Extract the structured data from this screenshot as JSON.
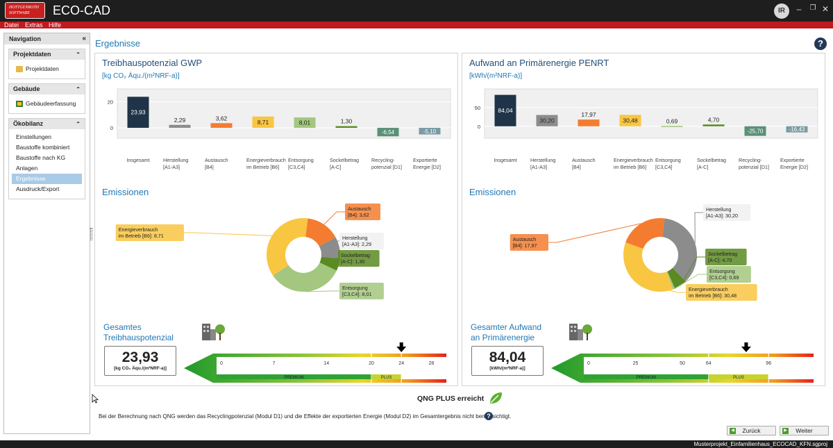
{
  "app": {
    "logo_line1": "HOTTGENROTH",
    "logo_line2": "SOFTWARE",
    "title": "ECO-CAD",
    "user_initials": "IR"
  },
  "menu": [
    "Datei",
    "Extras",
    "Hilfe"
  ],
  "nav": {
    "title": "Navigation",
    "sections": [
      {
        "title": "Projektdaten",
        "items": [
          {
            "label": "Projektdaten",
            "icon": "folder-icon"
          }
        ]
      },
      {
        "title": "Gebäude",
        "items": [
          {
            "label": "Gebäudeerfassung",
            "icon": "building-capture-icon"
          }
        ]
      },
      {
        "title": "Ökobilanz",
        "items": [
          {
            "label": "Einstellungen"
          },
          {
            "label": "Baustoffe kombiniert"
          },
          {
            "label": "Baustoffe nach KG"
          },
          {
            "label": "Anlagen"
          },
          {
            "label": "Ergebnisse",
            "active": true
          },
          {
            "label": "Ausdruck/Export"
          }
        ]
      }
    ]
  },
  "page": {
    "title": "Ergebnisse"
  },
  "panels": {
    "gwp": {
      "title": "Treibhauspotenzial GWP",
      "unit": "[kg CO₂ Äqu./(m²NRF-a)]",
      "emissions_title": "Emissionen",
      "total_label_1": "Gesamtes",
      "total_label_2": "Treibhauspotenzial",
      "total_value": "23,93",
      "total_unit": "[kg CO₂ Äqu./(m²NRF-a)]"
    },
    "penrt": {
      "title": "Aufwand an Primärenergie PENRT",
      "unit": "[kWh/(m²NRF-a)]",
      "emissions_title": "Emissionen",
      "total_label_1": "Gesamter Aufwand",
      "total_label_2": "an Primärenergie",
      "total_value": "84,04",
      "total_unit": "[kWh/(m²NRF-a)]"
    }
  },
  "chart_data": [
    {
      "type": "bar",
      "title": "Treibhauspotenzial GWP",
      "ylabel": "[kg CO₂ Äqu./(m²NRF-a)]",
      "ylim": [
        -8,
        30
      ],
      "yticks": [
        20,
        0
      ],
      "categories": [
        [
          "Insgesamt"
        ],
        [
          "Herstellung",
          "[A1-A3]"
        ],
        [
          "Austausch",
          "[B4]"
        ],
        [
          "Energieverbrauch",
          "im Betrieb [B6]"
        ],
        [
          "Entsorgung",
          "[C3,C4]"
        ],
        [
          "Sockelbetrag",
          "[A-C]"
        ],
        [
          "Recycling-",
          "potenzial [D1]"
        ],
        [
          "Exportierte",
          "Energie [D2]"
        ]
      ],
      "values": [
        23.93,
        2.29,
        3.62,
        8.71,
        8.01,
        1.3,
        -6.54,
        -5.1
      ],
      "labels": [
        "23,93",
        "2,29",
        "3,62",
        "8,71",
        "8,01",
        "1,30",
        "-6,54",
        "-5,10"
      ],
      "colors": [
        "#1f3448",
        "#8c8c8c",
        "#f47c30",
        "#f9c642",
        "#a3c77e",
        "#5b8a22",
        "#5a9078",
        "#7a9aa3"
      ]
    },
    {
      "type": "bar",
      "title": "Aufwand an Primärenergie PENRT",
      "ylabel": "[kWh/(m²NRF-a)]",
      "ylim": [
        -32,
        100
      ],
      "yticks": [
        50,
        0
      ],
      "categories": [
        [
          "Insgesamt"
        ],
        [
          "Herstellung",
          "[A1-A3]"
        ],
        [
          "Austausch",
          "[B4]"
        ],
        [
          "Energieverbrauch",
          "im Betrieb [B6]"
        ],
        [
          "Entsorgung",
          "[C3,C4]"
        ],
        [
          "Sockelbetrag",
          "[A-C]"
        ],
        [
          "Recycling-",
          "potenzial [D1]"
        ],
        [
          "Exportierte",
          "Energie [D2]"
        ]
      ],
      "values": [
        84.04,
        30.2,
        17.97,
        30.48,
        0.69,
        4.7,
        -25.7,
        -16.43
      ],
      "labels": [
        "84,04",
        "30,20",
        "17,97",
        "30,48",
        "0,69",
        "4,70",
        "-25,70",
        "-16,43"
      ],
      "colors": [
        "#1f3448",
        "#8c8c8c",
        "#f47c30",
        "#f9c642",
        "#a3c77e",
        "#5b8a22",
        "#5a9078",
        "#7a9aa3"
      ]
    },
    {
      "type": "pie",
      "title": "Emissionen",
      "slices": [
        {
          "name": "Austausch [B4]",
          "value": 3.62,
          "label": [
            "Austausch",
            "[B4]: 3,62"
          ],
          "color": "#f47c30",
          "lx": 360,
          "ly": 228,
          "side": "right"
        },
        {
          "name": "Herstellung [A1-A3]",
          "value": 2.29,
          "label": [
            "Herstellung",
            "[A1-A3]: 2,29"
          ],
          "color": "#8c8c8c",
          "lx": 352,
          "ly": 270,
          "side": "right"
        },
        {
          "name": "Sockelbetrag [A-C]",
          "value": 1.3,
          "label": [
            "Sockelbetrag",
            "[A-C]: 1,30"
          ],
          "color": "#5b8a22",
          "lx": 350,
          "ly": 295,
          "side": "right"
        },
        {
          "name": "Entsorgung [C3,C4]",
          "value": 8.01,
          "label": [
            "Entsorgung",
            "[C3,C4]: 8,01"
          ],
          "color": "#a3c77e",
          "lx": 352,
          "ly": 342,
          "side": "right"
        },
        {
          "name": "Energieverbrauch im Betrieb [B6]",
          "value": 8.71,
          "label": [
            "Energieverbrauch",
            "im Betrieb [B6]: 8,71"
          ],
          "color": "#f9c642",
          "lx": 128,
          "ly": 258,
          "side": "left"
        }
      ]
    },
    {
      "type": "pie",
      "title": "Emissionen",
      "slices": [
        {
          "name": "Herstellung [A1-A3]",
          "value": 30.2,
          "label": [
            "Herstellung",
            "[A1-A3]: 30,20"
          ],
          "color": "#8c8c8c",
          "lx": 347,
          "ly": 229,
          "side": "right"
        },
        {
          "name": "Sockelbetrag [A-C]",
          "value": 4.7,
          "label": [
            "Sockelbetrag",
            "[A-C]: 4,70"
          ],
          "color": "#5b8a22",
          "lx": 350,
          "ly": 293,
          "side": "right"
        },
        {
          "name": "Entsorgung [C3,C4]",
          "value": 0.69,
          "label": [
            "Entsorgung",
            "[C3,C4]: 0,69"
          ],
          "color": "#a3c77e",
          "lx": 352,
          "ly": 318,
          "side": "right"
        },
        {
          "name": "Energieverbrauch im Betrieb [B6]",
          "value": 30.48,
          "label": [
            "Energieverbrauch",
            "im Betrieb [B6]: 30,48"
          ],
          "color": "#f9c642",
          "lx": 322,
          "ly": 344,
          "side": "right"
        },
        {
          "name": "Austausch [B4]",
          "value": 17.97,
          "label": [
            "Austausch",
            "[B4]: 17,97"
          ],
          "color": "#f47c30",
          "lx": 124,
          "ly": 272,
          "side": "left"
        }
      ]
    },
    {
      "type": "gauge",
      "scale_max": 30,
      "ticks": [
        "0",
        "7",
        "14",
        "20",
        "24",
        "28"
      ],
      "tick_values": [
        0,
        7,
        14,
        20,
        24,
        28
      ],
      "zones": [
        {
          "label": "PREMIUM",
          "from": 0,
          "to": 20
        },
        {
          "label": "PLUS",
          "from": 20,
          "to": 24
        }
      ],
      "marker": 24
    },
    {
      "type": "gauge",
      "scale_max": 120,
      "ticks": [
        "0",
        "25",
        "50",
        "64",
        "96"
      ],
      "tick_values": [
        0,
        25,
        50,
        64,
        96
      ],
      "zones": [
        {
          "label": "PREMIUM",
          "from": 0,
          "to": 64
        },
        {
          "label": "PLUS",
          "from": 64,
          "to": 96
        }
      ],
      "marker": 84.04
    }
  ],
  "result": {
    "qng_text": "QNG PLUS erreicht"
  },
  "footnote": "Bei der Berechnung nach QNG werden das Recyclingpotenzial (Modul D1) und die Effekte der exportierten Energie (Modul D2) im Gesamtergebnis nicht berücksichtigt.",
  "buttons": {
    "back": "Zurück",
    "next": "Weiter"
  },
  "status": {
    "file": "Musterprojekt_Einfamilienhaus_ECOCAD_KFN.sgproj"
  },
  "colors": {
    "accent": "#c0191e",
    "title_blue": "#1f77b4"
  }
}
